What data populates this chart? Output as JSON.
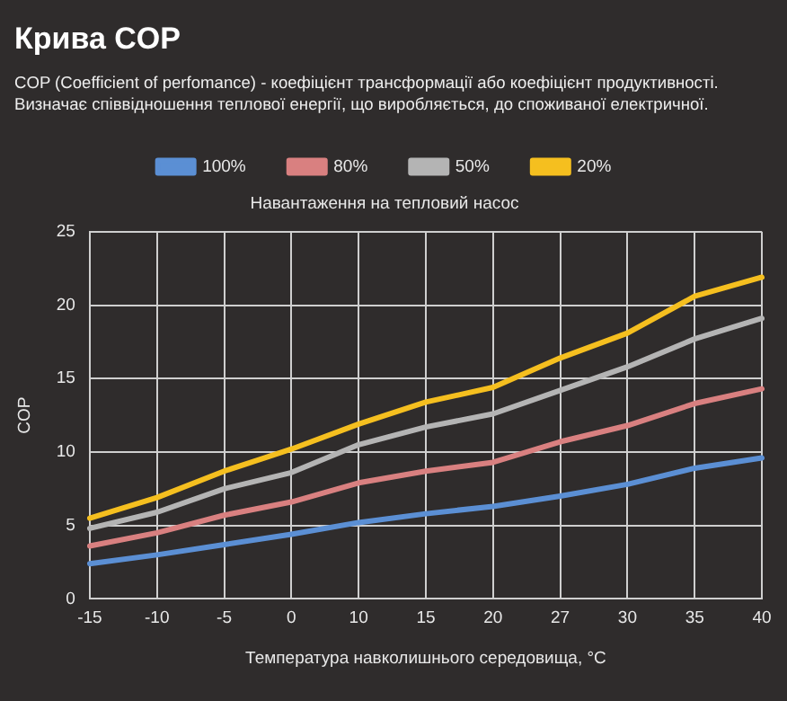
{
  "chart_data": {
    "type": "line",
    "title": "Крива COP",
    "subtitle": "COP (Coefficient of perfomance) - коефіцієнт трансформації або коефіцієнт продуктивності. Визначає співвідношення теплової енергії, що виробляється, до споживаної електричної.",
    "legend_title": "Навантаження на тепловий насос",
    "xlabel": "Температура навколишнього середовища, °C",
    "ylabel": "COP",
    "categories": [
      "-15",
      "-10",
      "-5",
      "0",
      "10",
      "15",
      "20",
      "27",
      "30",
      "35",
      "40"
    ],
    "series": [
      {
        "name": "100%",
        "color": "#5b8fd4",
        "values": [
          2.4,
          3.0,
          3.7,
          4.4,
          5.2,
          5.8,
          6.3,
          7.0,
          7.8,
          8.9,
          9.6
        ]
      },
      {
        "name": "80%",
        "color": "#d98080",
        "values": [
          3.6,
          4.5,
          5.7,
          6.6,
          7.9,
          8.7,
          9.3,
          10.7,
          11.8,
          13.3,
          14.3
        ]
      },
      {
        "name": "50%",
        "color": "#b4b4b4",
        "values": [
          4.8,
          5.9,
          7.5,
          8.6,
          10.5,
          11.7,
          12.6,
          14.2,
          15.8,
          17.7,
          19.1
        ]
      },
      {
        "name": "20%",
        "color": "#f5bf1f",
        "values": [
          5.5,
          6.9,
          8.7,
          10.2,
          11.9,
          13.4,
          14.4,
          16.4,
          18.1,
          20.6,
          21.9
        ]
      }
    ],
    "ylim": [
      0,
      25
    ],
    "yticks": [
      0,
      5,
      10,
      15,
      20,
      25
    ],
    "grid": true,
    "legend": "top",
    "marker": "none",
    "line_style": "solid"
  }
}
